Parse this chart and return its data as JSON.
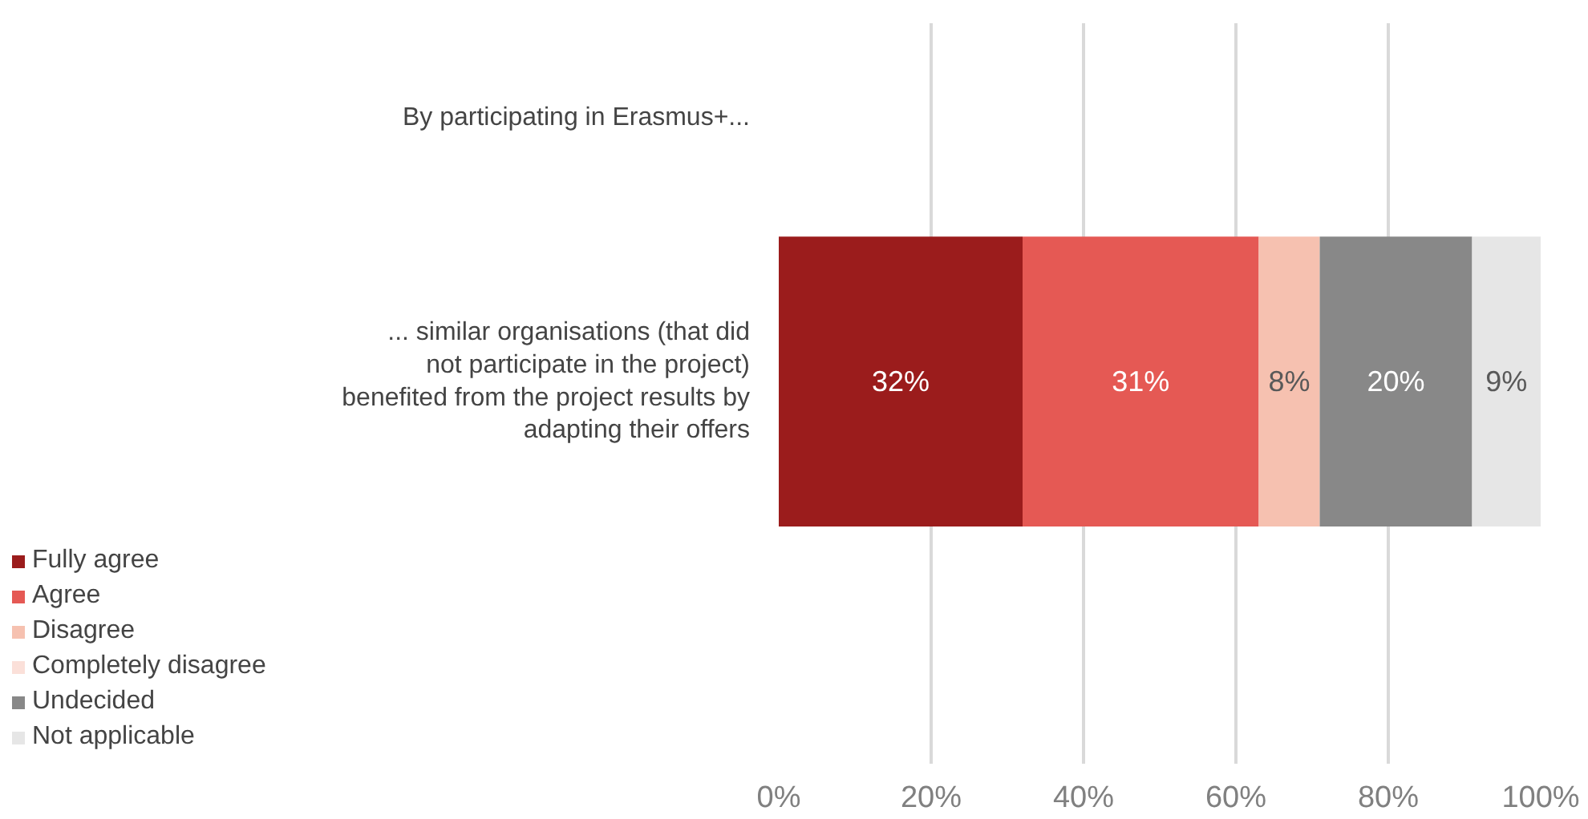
{
  "chart_data": {
    "type": "bar",
    "orientation": "horizontal",
    "stacked": true,
    "categories": [
      "By participating in Erasmus+...",
      "... similar organisations (that did not participate in the project) benefited from the project results by adapting their offers"
    ],
    "series": [
      {
        "name": "Fully agree",
        "color": "#9b1c1c",
        "values": [
          null,
          32
        ],
        "value_labels": [
          null,
          "32%"
        ]
      },
      {
        "name": "Agree",
        "color": "#e55954",
        "values": [
          null,
          31
        ],
        "value_labels": [
          null,
          "31%"
        ]
      },
      {
        "name": "Disagree",
        "color": "#f6c1b0",
        "values": [
          null,
          8
        ],
        "value_labels": [
          null,
          "8%"
        ]
      },
      {
        "name": "Completely disagree",
        "color": "#fbe0d9",
        "values": [
          null,
          0
        ],
        "value_labels": [
          null,
          null
        ]
      },
      {
        "name": "Undecided",
        "color": "#888888",
        "values": [
          null,
          20
        ],
        "value_labels": [
          null,
          "20%"
        ]
      },
      {
        "name": "Not applicable",
        "color": "#e6e6e6",
        "values": [
          null,
          9
        ],
        "value_labels": [
          null,
          "9%"
        ]
      }
    ],
    "xlim": [
      0,
      100
    ],
    "xticks": [
      {
        "value": 0,
        "label": "0%"
      },
      {
        "value": 20,
        "label": "20%"
      },
      {
        "value": 40,
        "label": "40%"
      },
      {
        "value": 60,
        "label": "60%"
      },
      {
        "value": 80,
        "label": "80%"
      },
      {
        "value": 100,
        "label": "100%"
      }
    ],
    "grid": "x",
    "legend": "bottom left"
  }
}
